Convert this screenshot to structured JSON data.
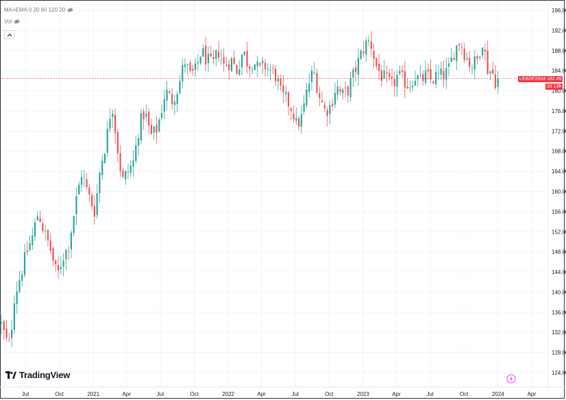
{
  "header": {
    "indicator_label": "MA+EMA 0 20 60 120 20",
    "volume_label": "Vol"
  },
  "brand": {
    "name": "TradingView"
  },
  "price_line": {
    "symbol": "LEADF2024",
    "last_price": "182.45",
    "countdown": "2d 13h",
    "color": "#f23645"
  },
  "colors": {
    "up": "#26a69a",
    "down": "#ef5350",
    "grid": "#f0f3fa",
    "axis_text": "#131722"
  },
  "chart_data": {
    "type": "candlestick",
    "title": "",
    "xlabel": "",
    "ylabel": "",
    "ylim": [
      122,
      197
    ],
    "y_ticks": [
      "124.00",
      "128.00",
      "132.00",
      "136.00",
      "140.00",
      "144.00",
      "148.00",
      "152.00",
      "156.00",
      "160.00",
      "164.00",
      "168.00",
      "172.00",
      "176.00",
      "180.00",
      "184.00",
      "188.00",
      "192.00",
      "196.00"
    ],
    "x_ticks": [
      {
        "label": "Jul",
        "date": "2020-07-01"
      },
      {
        "label": "Oct",
        "date": "2020-10-01"
      },
      {
        "label": "2021",
        "date": "2021-01-01"
      },
      {
        "label": "Apr",
        "date": "2021-04-01"
      },
      {
        "label": "Jul",
        "date": "2021-07-01"
      },
      {
        "label": "Oct",
        "date": "2021-10-01"
      },
      {
        "label": "2022",
        "date": "2022-01-01"
      },
      {
        "label": "Apr",
        "date": "2022-04-01"
      },
      {
        "label": "Jul",
        "date": "2022-07-01"
      },
      {
        "label": "Oct",
        "date": "2022-10-01"
      },
      {
        "label": "2023",
        "date": "2023-01-01"
      },
      {
        "label": "Apr",
        "date": "2023-04-01"
      },
      {
        "label": "Jul",
        "date": "2023-07-01"
      },
      {
        "label": "Oct",
        "date": "2023-10-01"
      },
      {
        "label": "2024",
        "date": "2024-01-01"
      },
      {
        "label": "Apr",
        "date": "2024-04-01"
      }
    ],
    "xlim": [
      "2020-04-27",
      "2024-05-01"
    ],
    "close_anchors": [
      [
        "2020-04-27",
        133.5
      ],
      [
        "2020-05-12",
        130
      ],
      [
        "2020-05-20",
        129.5
      ],
      [
        "2020-06-01",
        139
      ],
      [
        "2020-06-20",
        144
      ],
      [
        "2020-07-05",
        148
      ],
      [
        "2020-07-20",
        151
      ],
      [
        "2020-08-05",
        156
      ],
      [
        "2020-08-20",
        152
      ],
      [
        "2020-09-05",
        149
      ],
      [
        "2020-09-25",
        143
      ],
      [
        "2020-10-10",
        147
      ],
      [
        "2020-10-25",
        149
      ],
      [
        "2020-11-15",
        158
      ],
      [
        "2020-12-01",
        164
      ],
      [
        "2020-12-15",
        160
      ],
      [
        "2021-01-05",
        156
      ],
      [
        "2021-01-20",
        165
      ],
      [
        "2021-02-05",
        170
      ],
      [
        "2021-02-20",
        178
      ],
      [
        "2021-03-05",
        170
      ],
      [
        "2021-03-20",
        162
      ],
      [
        "2021-04-05",
        164
      ],
      [
        "2021-04-20",
        166
      ],
      [
        "2021-05-05",
        173
      ],
      [
        "2021-05-20",
        176
      ],
      [
        "2021-06-05",
        171
      ],
      [
        "2021-06-20",
        172
      ],
      [
        "2021-07-01",
        175
      ],
      [
        "2021-07-15",
        180
      ],
      [
        "2021-08-01",
        178
      ],
      [
        "2021-08-20",
        181
      ],
      [
        "2021-09-05",
        186
      ],
      [
        "2021-09-20",
        183
      ],
      [
        "2021-10-05",
        184
      ],
      [
        "2021-10-20",
        188
      ],
      [
        "2021-11-05",
        186
      ],
      [
        "2021-11-20",
        185
      ],
      [
        "2021-12-05",
        188
      ],
      [
        "2021-12-20",
        185
      ],
      [
        "2022-01-10",
        186
      ],
      [
        "2022-01-25",
        184
      ],
      [
        "2022-02-10",
        188
      ],
      [
        "2022-02-25",
        185
      ],
      [
        "2022-03-10",
        186
      ],
      [
        "2022-03-25",
        184
      ],
      [
        "2022-04-10",
        185
      ],
      [
        "2022-04-25",
        184
      ],
      [
        "2022-05-10",
        183
      ],
      [
        "2022-05-25",
        179
      ],
      [
        "2022-06-10",
        178
      ],
      [
        "2022-06-25",
        176
      ],
      [
        "2022-07-05",
        173
      ],
      [
        "2022-07-20",
        175
      ],
      [
        "2022-08-05",
        181
      ],
      [
        "2022-08-20",
        184
      ],
      [
        "2022-09-05",
        179
      ],
      [
        "2022-09-20",
        176
      ],
      [
        "2022-10-05",
        177
      ],
      [
        "2022-10-20",
        181
      ],
      [
        "2022-11-05",
        179
      ],
      [
        "2022-11-20",
        180
      ],
      [
        "2022-12-05",
        183
      ],
      [
        "2022-12-20",
        186
      ],
      [
        "2023-01-05",
        189
      ],
      [
        "2023-01-20",
        190
      ],
      [
        "2023-02-05",
        185
      ],
      [
        "2023-02-20",
        183
      ],
      [
        "2023-03-05",
        182
      ],
      [
        "2023-03-20",
        181
      ],
      [
        "2023-04-05",
        183
      ],
      [
        "2023-04-20",
        182
      ],
      [
        "2023-05-05",
        181
      ],
      [
        "2023-05-20",
        183
      ],
      [
        "2023-06-05",
        182
      ],
      [
        "2023-06-20",
        183
      ],
      [
        "2023-07-05",
        182
      ],
      [
        "2023-07-20",
        183
      ],
      [
        "2023-08-05",
        183
      ],
      [
        "2023-08-20",
        184
      ],
      [
        "2023-09-05",
        188
      ],
      [
        "2023-09-20",
        190
      ],
      [
        "2023-10-05",
        187
      ],
      [
        "2023-10-20",
        185
      ],
      [
        "2023-11-05",
        186
      ],
      [
        "2023-11-20",
        190
      ],
      [
        "2023-12-05",
        184
      ],
      [
        "2023-12-15",
        184
      ],
      [
        "2023-12-25",
        182
      ],
      [
        "2024-01-05",
        182.45
      ]
    ],
    "last_close": 182.45
  }
}
